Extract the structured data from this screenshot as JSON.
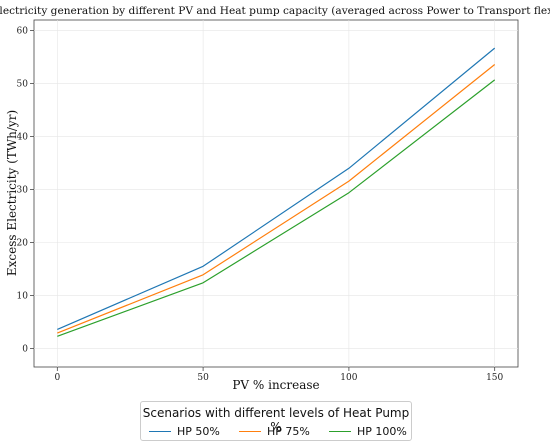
{
  "chart_data": {
    "type": "line",
    "title": "Excess electricity generation by different PV and Heat pump capacity (averaged across Power to Transport flexibilities)",
    "xlabel": "PV % increase",
    "ylabel": "Excess Electricity (TWh/yr)",
    "x": [
      0,
      50,
      100,
      150
    ],
    "xlim": [
      -8,
      158
    ],
    "ylim": [
      -3.5,
      62
    ],
    "xticks": [
      0,
      50,
      100,
      150
    ],
    "yticks": [
      0,
      10,
      20,
      30,
      40,
      50,
      60
    ],
    "grid": true,
    "series": [
      {
        "name": "HP 50%",
        "color": "#1f77b4",
        "values": [
          3.6,
          15.5,
          34.0,
          56.7
        ]
      },
      {
        "name": "HP 75%",
        "color": "#ff7f0e",
        "values": [
          2.9,
          13.9,
          31.6,
          53.6
        ]
      },
      {
        "name": "HP 100%",
        "color": "#2ca02c",
        "values": [
          2.3,
          12.4,
          29.4,
          50.7
        ]
      }
    ],
    "legend": {
      "title": "Scenarios with different levels of Heat Pump %",
      "placement": "bottom-center"
    }
  }
}
